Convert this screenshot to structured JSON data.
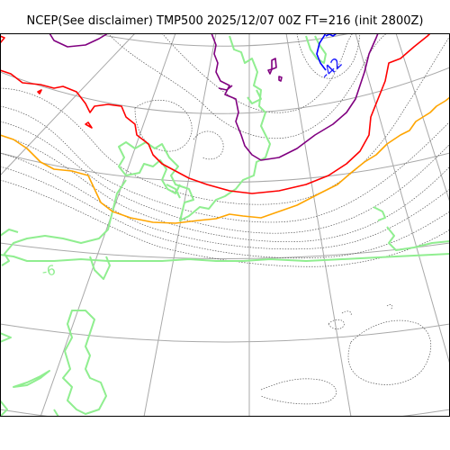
{
  "title": "NCEP(See disclaimer) TMP500 2025/12/07 00Z FT=216 (init 2800Z)",
  "legend": {
    "contour_labels": [
      {
        "text": "-42",
        "color": "#1a1aff"
      },
      {
        "text": "-6",
        "color": "#90ee90"
      }
    ]
  },
  "colors": {
    "frame": "#000000",
    "graticule": "#a9a9a9",
    "coastline": "#90ee90",
    "contour_dotted": "#555555",
    "isotherm_purple": "#800080",
    "isotherm_red": "#ff0000",
    "isotherm_orange": "#ffa500",
    "isotherm_blue": "#0000ff"
  }
}
